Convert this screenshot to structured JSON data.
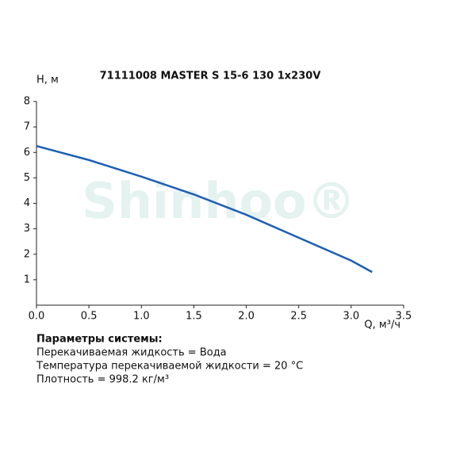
{
  "chart_data": {
    "type": "line",
    "title": "71111008 MASTER S 15-6 130 1x230V",
    "y_label": "H, м",
    "x_label": "Q, м³/ч",
    "watermark": "Shinhoo®",
    "x": [
      0,
      0.5,
      1.0,
      1.5,
      2.0,
      2.5,
      3.0,
      3.2
    ],
    "series": [
      {
        "name": "H",
        "color": "#1d5fb5",
        "values": [
          6.25,
          5.7,
          5.05,
          4.35,
          3.55,
          2.65,
          1.75,
          1.3
        ]
      }
    ],
    "xlim": [
      0,
      3.5
    ],
    "xticks": [
      {
        "value": 0,
        "label": "0.0"
      },
      0.5,
      {
        "value": 1,
        "label": "1.0"
      },
      1.5,
      {
        "value": 2,
        "label": "2.0"
      },
      2.5,
      {
        "value": 3,
        "label": "3.0"
      },
      3.5
    ],
    "ylim": [
      0,
      8
    ],
    "yticks": [
      1,
      2,
      3,
      4,
      5,
      6,
      7,
      8
    ],
    "grid": false
  },
  "notes": {
    "heading": "Параметры системы:",
    "lines": [
      "Перекачиваемая жидкость = Вода",
      "Температура перекачиваемой жидкости = 20 °C",
      "Плотность = 998.2 кг/м³"
    ]
  }
}
